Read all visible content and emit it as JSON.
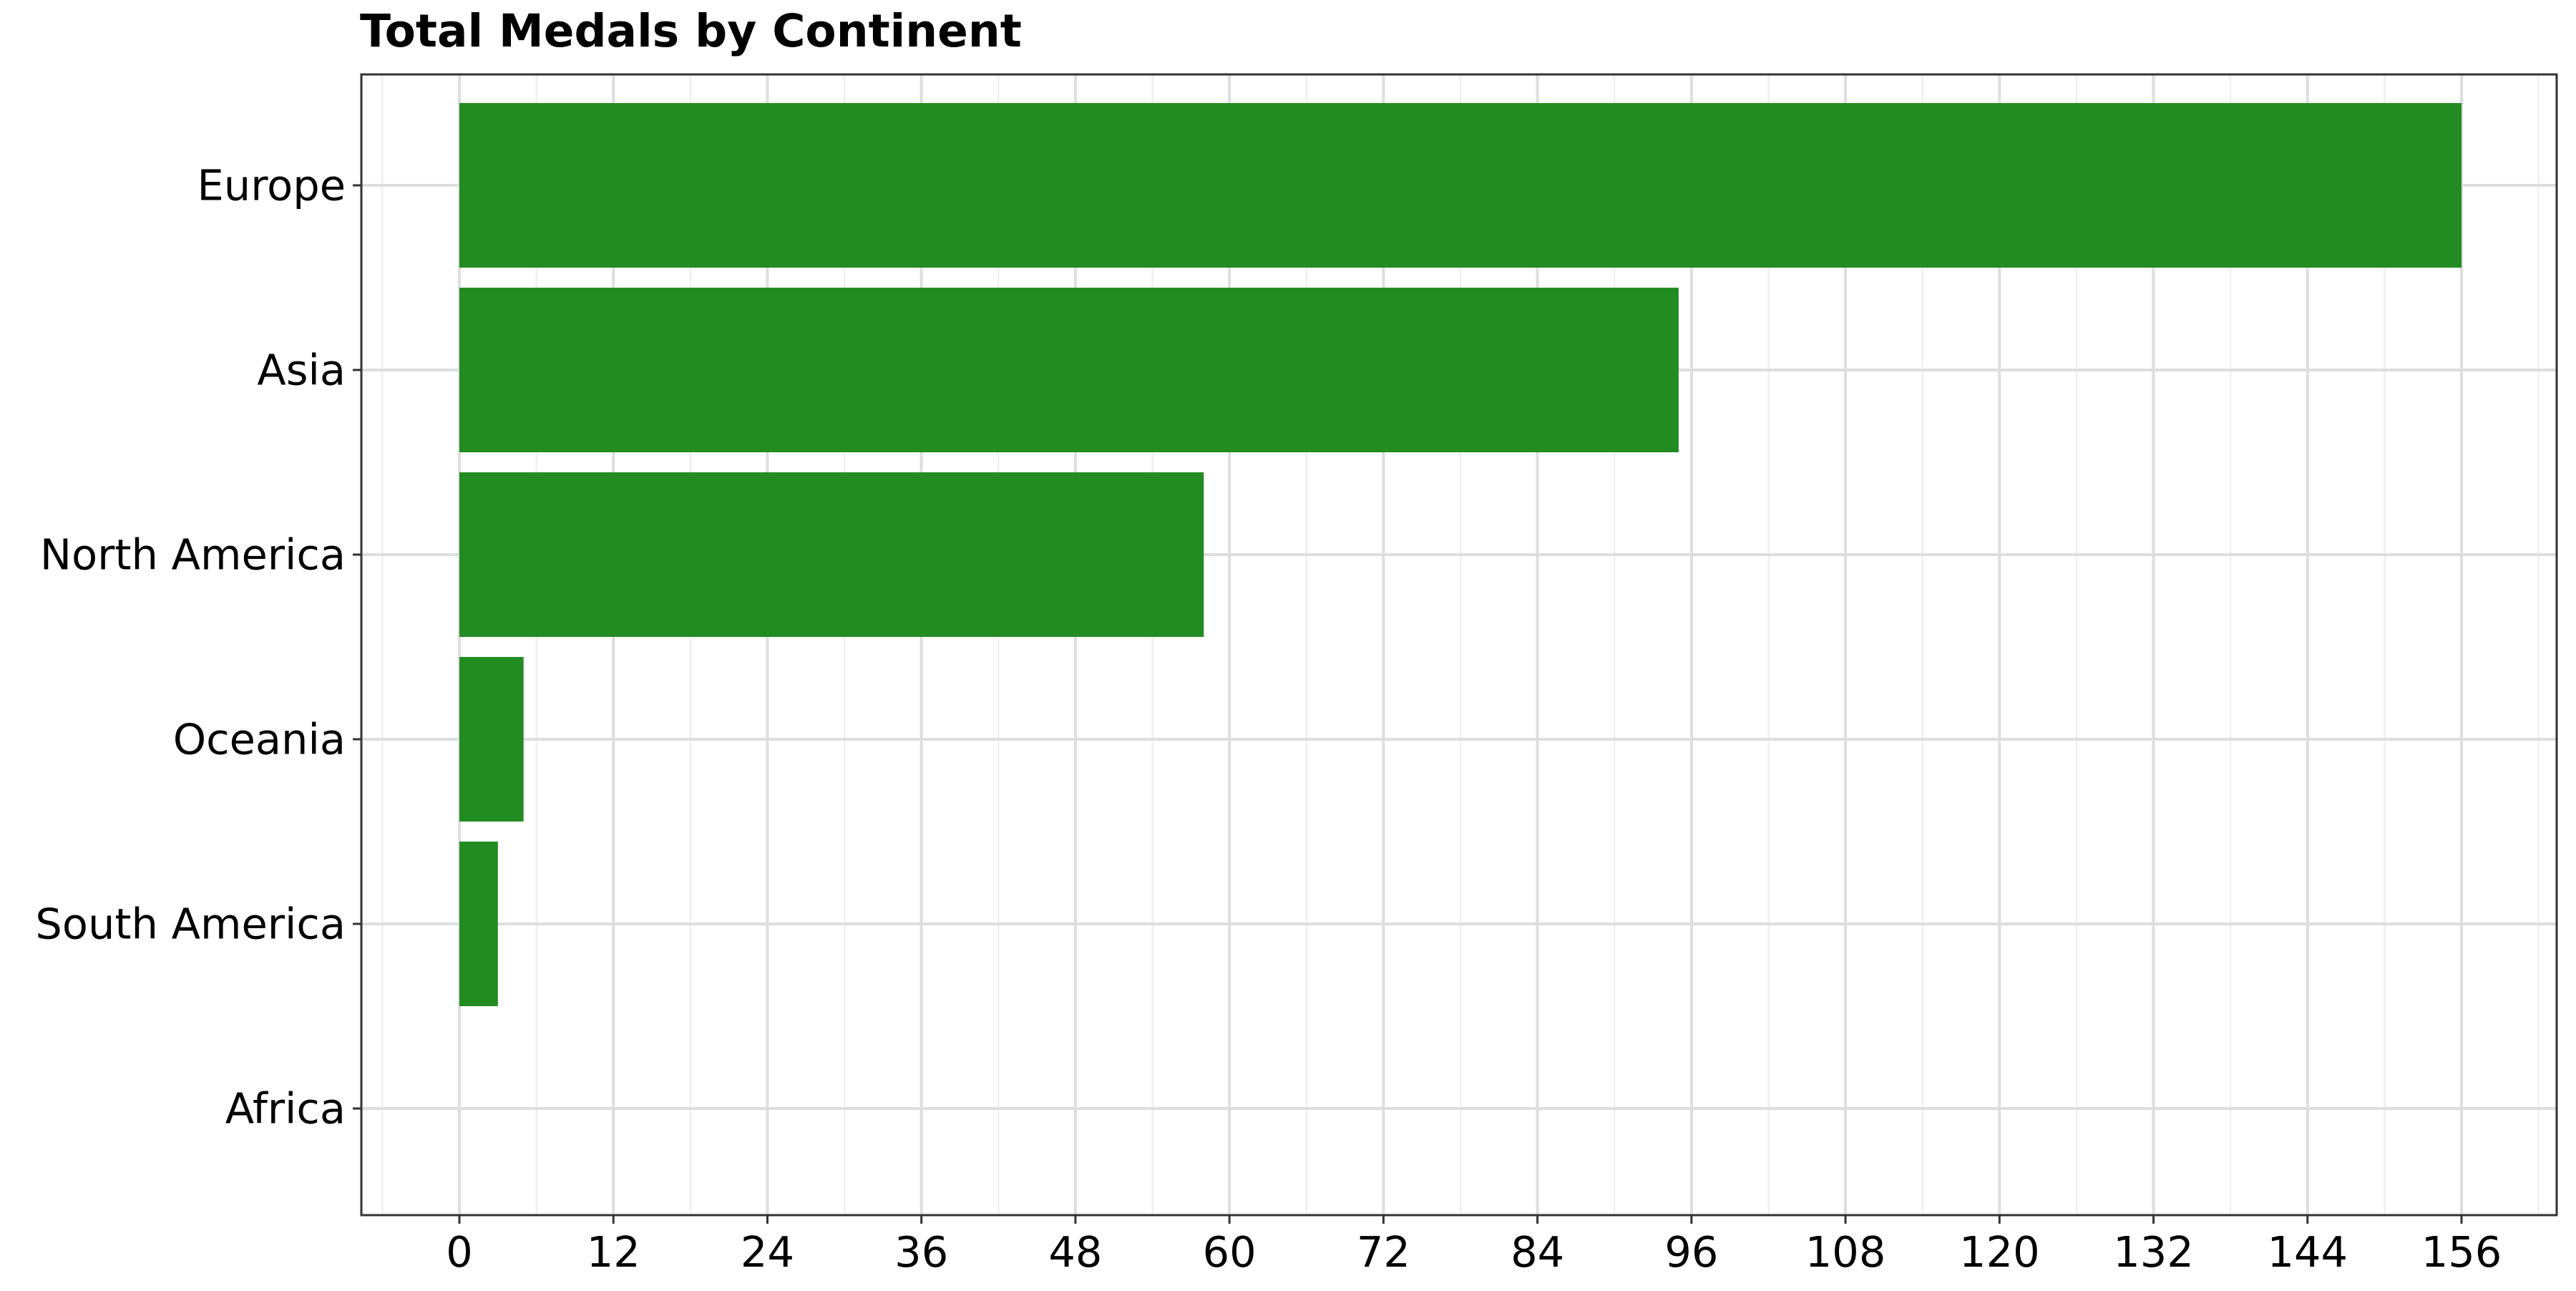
{
  "chart_data": {
    "type": "bar",
    "orientation": "horizontal",
    "title": "Total Medals by Continent",
    "xlabel": "",
    "ylabel": "",
    "categories": [
      "Europe",
      "Asia",
      "North America",
      "Oceania",
      "South America",
      "Africa"
    ],
    "values": [
      156,
      95,
      58,
      5,
      3,
      0
    ],
    "xlim": [
      -6,
      163.5
    ],
    "xticks": [
      0,
      12,
      24,
      36,
      48,
      60,
      72,
      84,
      96,
      108,
      120,
      132,
      144,
      156
    ],
    "bar_color": "#228B22",
    "grid": true,
    "legend": "none"
  }
}
